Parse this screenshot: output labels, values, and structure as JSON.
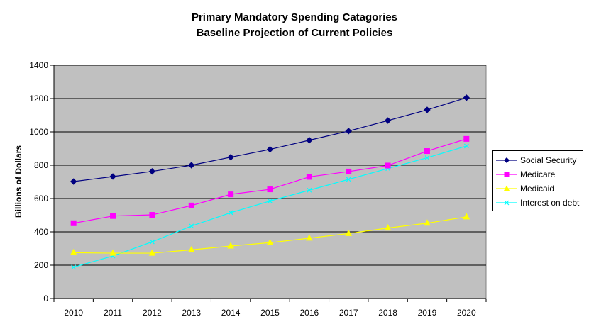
{
  "chart_data": {
    "type": "line",
    "title": "Primary Mandatory Spending Catagories",
    "subtitle": "Baseline Projection of Current Policies",
    "xlabel": "",
    "ylabel": "Billions of Dollars",
    "categories": [
      "2010",
      "2011",
      "2012",
      "2013",
      "2014",
      "2015",
      "2016",
      "2017",
      "2018",
      "2019",
      "2020"
    ],
    "ylim": [
      0,
      1400
    ],
    "yticks": [
      0,
      200,
      400,
      600,
      800,
      1000,
      1200,
      1400
    ],
    "grid": true,
    "legend_position": "right",
    "plot_background": "#c0c0c0",
    "series": [
      {
        "name": "Social Security",
        "color": "#000080",
        "marker": "diamond",
        "values": [
          702,
          732,
          763,
          800,
          848,
          895,
          950,
          1005,
          1068,
          1132,
          1205
        ]
      },
      {
        "name": "Medicare",
        "color": "#ff00ff",
        "marker": "square",
        "values": [
          452,
          495,
          502,
          558,
          625,
          655,
          730,
          762,
          798,
          885,
          958
        ]
      },
      {
        "name": "Medicaid",
        "color": "#ffff00",
        "marker": "triangle",
        "values": [
          275,
          272,
          272,
          292,
          315,
          335,
          362,
          390,
          423,
          452,
          490
        ]
      },
      {
        "name": "Interest on debt",
        "color": "#00ffff",
        "marker": "x",
        "values": [
          188,
          255,
          340,
          435,
          515,
          585,
          650,
          715,
          780,
          845,
          915
        ]
      }
    ]
  }
}
